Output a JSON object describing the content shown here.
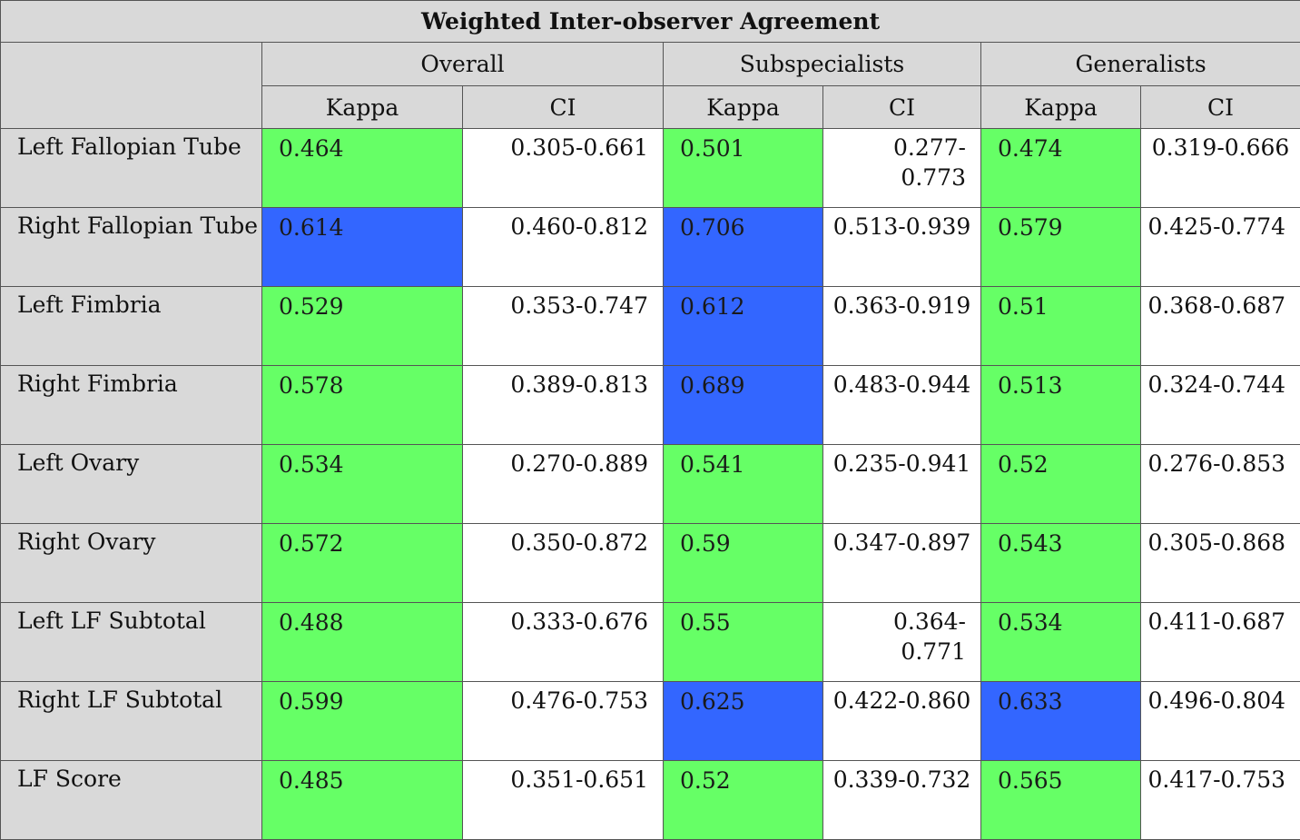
{
  "title": "Weighted Inter-observer Agreement",
  "groups": [
    "Overall",
    "Subspecialists",
    "Generalists"
  ],
  "subheaders": {
    "kappa": "Kappa",
    "ci": "CI"
  },
  "colors": {
    "green": "#66ff66",
    "blue": "#3366ff",
    "header": "#d9d9d9"
  },
  "rows": [
    {
      "label": "Left Fallopian Tube",
      "cells": [
        {
          "kappa": "0.464",
          "kappa_color": "green",
          "ci": "0.305-0.661"
        },
        {
          "kappa": "0.501",
          "kappa_color": "green",
          "ci": "0.277-0.773"
        },
        {
          "kappa": "0.474",
          "kappa_color": "green",
          "ci": "0.319-0.666",
          "ci_wrap": true
        }
      ]
    },
    {
      "label": "Right Fallopian Tube",
      "cells": [
        {
          "kappa": "0.614",
          "kappa_color": "blue",
          "ci": "0.460-0.812"
        },
        {
          "kappa": "0.706",
          "kappa_color": "blue",
          "ci": "0.513-0.939",
          "ci_wrap": true
        },
        {
          "kappa": "0.579",
          "kappa_color": "green",
          "ci": "0.425-0.774"
        }
      ]
    },
    {
      "label": "Left Fimbria",
      "cells": [
        {
          "kappa": "0.529",
          "kappa_color": "green",
          "ci": "0.353-0.747"
        },
        {
          "kappa": "0.612",
          "kappa_color": "blue",
          "ci": "0.363-0.919",
          "ci_wrap": true
        },
        {
          "kappa": "0.51",
          "kappa_color": "green",
          "ci": "0.368-0.687"
        }
      ]
    },
    {
      "label": "Right Fimbria",
      "cells": [
        {
          "kappa": "0.578",
          "kappa_color": "green",
          "ci": "0.389-0.813"
        },
        {
          "kappa": "0.689",
          "kappa_color": "blue",
          "ci": "0.483-0.944",
          "ci_wrap": true
        },
        {
          "kappa": "0.513",
          "kappa_color": "green",
          "ci": "0.324-0.744"
        }
      ]
    },
    {
      "label": "Left Ovary",
      "cells": [
        {
          "kappa": "0.534",
          "kappa_color": "green",
          "ci": "0.270-0.889"
        },
        {
          "kappa": "0.541",
          "kappa_color": "green",
          "ci": "0.235-0.941",
          "ci_wrap": true
        },
        {
          "kappa": "0.52",
          "kappa_color": "green",
          "ci": "0.276-0.853"
        }
      ]
    },
    {
      "label": "Right Ovary",
      "cells": [
        {
          "kappa": "0.572",
          "kappa_color": "green",
          "ci": "0.350-0.872"
        },
        {
          "kappa": "0.59",
          "kappa_color": "green",
          "ci": "0.347-0.897",
          "ci_wrap": true
        },
        {
          "kappa": "0.543",
          "kappa_color": "green",
          "ci": "0.305-0.868"
        }
      ]
    },
    {
      "label": "Left LF Subtotal",
      "cells": [
        {
          "kappa": "0.488",
          "kappa_color": "green",
          "ci": "0.333-0.676"
        },
        {
          "kappa": "0.55",
          "kappa_color": "green",
          "ci": "0.364-0.771"
        },
        {
          "kappa": "0.534",
          "kappa_color": "green",
          "ci": "0.411-0.687"
        }
      ]
    },
    {
      "label": "Right LF Subtotal",
      "cells": [
        {
          "kappa": "0.599",
          "kappa_color": "green",
          "ci": "0.476-0.753"
        },
        {
          "kappa": "0.625",
          "kappa_color": "blue",
          "ci": "0.422-0.860",
          "ci_wrap": true
        },
        {
          "kappa": "0.633",
          "kappa_color": "blue",
          "ci": "0.496-0.804"
        }
      ]
    },
    {
      "label": "LF Score",
      "cells": [
        {
          "kappa": "0.485",
          "kappa_color": "green",
          "ci": "0.351-0.651"
        },
        {
          "kappa": "0.52",
          "kappa_color": "green",
          "ci": "0.339-0.732",
          "ci_wrap": true
        },
        {
          "kappa": "0.565",
          "kappa_color": "green",
          "ci": "0.417-0.753"
        }
      ]
    }
  ]
}
